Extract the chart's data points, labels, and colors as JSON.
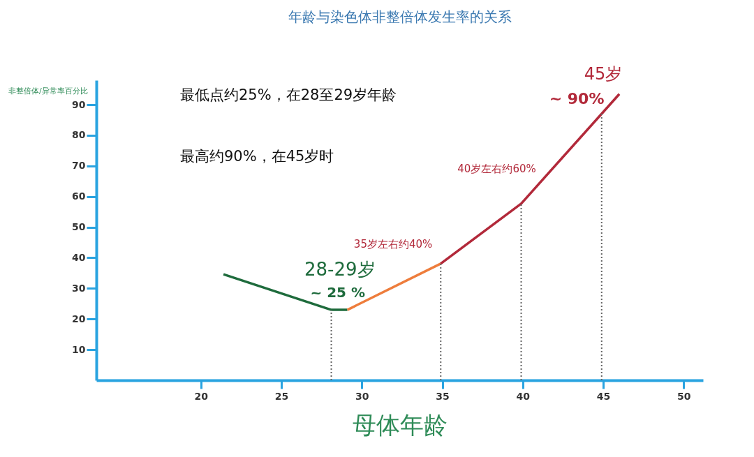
{
  "chart_data": {
    "type": "line",
    "title": "年龄与染色体非整倍体发生率的关系",
    "xlabel": "母体年龄",
    "ylabel": "非整倍体/异常率百分比",
    "xlim": [
      13.5,
      51.2
    ],
    "ylim": [
      0,
      98
    ],
    "xticks": [
      20,
      25,
      30,
      35,
      40,
      45,
      50
    ],
    "yticks": [
      10,
      20,
      30,
      40,
      50,
      60,
      70,
      80,
      90
    ],
    "grid": false,
    "legend": false,
    "marker": "none",
    "line_style": "solid",
    "series": [
      {
        "color": "#1e6b3c",
        "x": [
          21.4,
          28.1,
          29.1
        ],
        "values": [
          34.6,
          23,
          23
        ]
      },
      {
        "color": "#ee7d3c",
        "x": [
          29.1,
          34.9
        ],
        "values": [
          23,
          38.1
        ]
      },
      {
        "color": "#b2293a",
        "x": [
          34.9,
          39.9,
          46.0
        ],
        "values": [
          38.1,
          57.7,
          93.5
        ]
      }
    ],
    "ref_lines": [
      {
        "axis": "x",
        "value": 28.1,
        "line_style": "dotted",
        "color": "#666666"
      },
      {
        "axis": "x",
        "value": 34.9,
        "line_style": "dotted",
        "color": "#666666"
      },
      {
        "axis": "x",
        "value": 39.9,
        "line_style": "dotted",
        "color": "#666666"
      },
      {
        "axis": "x",
        "value": 44.9,
        "line_style": "dotted",
        "color": "#666666"
      }
    ],
    "annotations": [
      "最低点约25%，在28至29岁年龄",
      "最高约90%，在45岁时",
      {
        "text": "28-29岁",
        "x": 28.5,
        "y": 23
      },
      {
        "text": "~ 25 %",
        "x": 28.5,
        "y": 23
      },
      {
        "text": "35岁左右约40%",
        "x": 34.9,
        "y": 38.1
      },
      {
        "text": "40岁左右约60%",
        "x": 39.9,
        "y": 57.7
      },
      {
        "text": "45岁",
        "x": 45,
        "y": 90
      },
      {
        "text": "~ 90%",
        "x": 45,
        "y": 90
      }
    ]
  }
}
